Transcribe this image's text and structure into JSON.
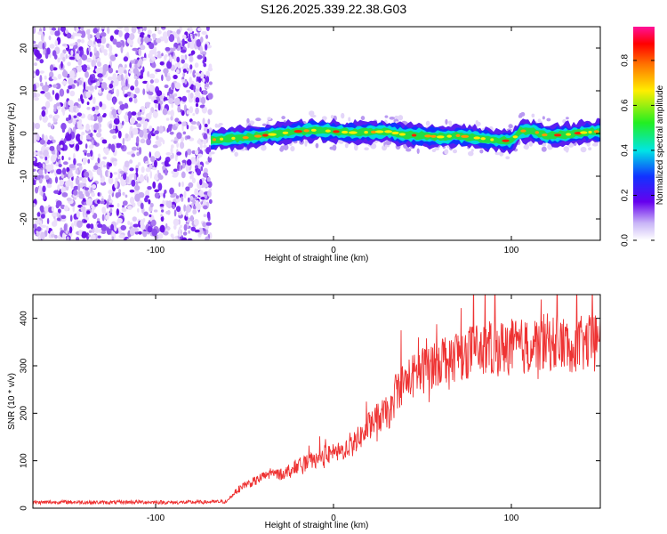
{
  "title": "S126.2025.339.22.38.G03",
  "chart_data": [
    {
      "type": "heatmap",
      "xlabel": "Height of straight line (km)",
      "ylabel": "Frequency (Hz)",
      "xlim": [
        -169,
        150
      ],
      "ylim": [
        -25,
        25
      ],
      "xticks": [
        -100,
        0,
        100
      ],
      "xtick_labels": [
        "-100",
        "0",
        "100"
      ],
      "yticks": [
        -20,
        -10,
        0,
        10,
        20
      ],
      "ytick_labels": [
        "-20",
        "-10",
        "0",
        "10",
        "20"
      ],
      "noise_region_x": [
        -169,
        -69
      ],
      "ridge": {
        "x": [
          -69,
          -60,
          -50,
          -40,
          -30,
          -20,
          -10,
          0,
          10,
          20,
          30,
          40,
          50,
          60,
          70,
          80,
          90,
          100,
          105,
          110,
          120,
          130,
          140,
          150
        ],
        "frequency": [
          -1.5,
          -1.2,
          -1.0,
          -0.5,
          0.0,
          0.5,
          0.8,
          0.5,
          0.2,
          0.3,
          0.5,
          -0.3,
          -0.5,
          -0.8,
          -0.5,
          -1.0,
          -1.5,
          -1.8,
          0.5,
          0.8,
          -0.5,
          -0.3,
          0.2,
          0.5
        ]
      },
      "colorbar": {
        "label": "Normalized spectral amplitude",
        "range": [
          0,
          0.95
        ],
        "ticks": [
          0.0,
          0.2,
          0.4,
          0.6,
          0.8
        ],
        "tick_labels": [
          "0.0",
          "0.2",
          "0.4",
          "0.6",
          "0.8"
        ]
      }
    },
    {
      "type": "line",
      "xlabel": "Height of straight line (km)",
      "ylabel": "SNR (10 * v/v)",
      "xlim": [
        -169,
        150
      ],
      "ylim": [
        0,
        450
      ],
      "xticks": [
        -100,
        0,
        100
      ],
      "xtick_labels": [
        "-100",
        "0",
        "100"
      ],
      "yticks": [
        0,
        100,
        200,
        300,
        400
      ],
      "ytick_labels": [
        "0",
        "100",
        "200",
        "300",
        "400"
      ],
      "series": [
        {
          "name": "SNR",
          "color": "#ee3333",
          "x": [
            -169,
            -150,
            -130,
            -110,
            -90,
            -70,
            -60,
            -55,
            -50,
            -45,
            -40,
            -35,
            -30,
            -25,
            -20,
            -15,
            -10,
            -5,
            0,
            5,
            10,
            15,
            18,
            20,
            25,
            30,
            33,
            35,
            40,
            50,
            60,
            70,
            80,
            90,
            100,
            110,
            120,
            130,
            140,
            150
          ],
          "values": [
            12,
            13,
            12,
            13,
            12,
            13,
            14,
            35,
            50,
            55,
            65,
            75,
            70,
            80,
            90,
            95,
            100,
            110,
            115,
            120,
            135,
            150,
            160,
            175,
            190,
            200,
            205,
            250,
            265,
            290,
            315,
            325,
            335,
            335,
            340,
            340,
            350,
            345,
            345,
            350
          ]
        }
      ]
    }
  ]
}
